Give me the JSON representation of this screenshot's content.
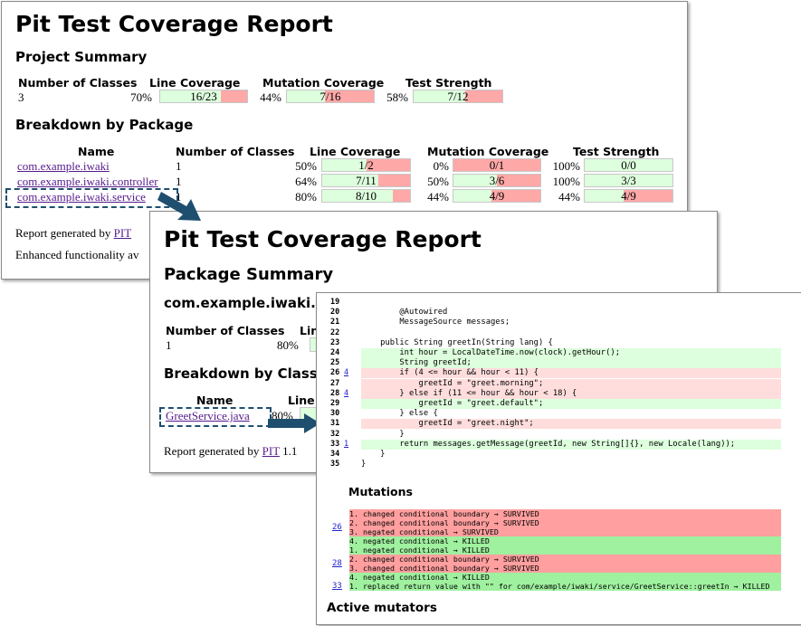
{
  "project_report": {
    "title": "Pit Test Coverage Report",
    "summary_heading": "Project Summary",
    "summary_headers": [
      "Number of Classes",
      "Line Coverage",
      "Mutation Coverage",
      "Test Strength"
    ],
    "summary": {
      "classes": "3",
      "line_pct": "70%",
      "line_val": "16/23",
      "line_frac": 0.7,
      "mut_pct": "44%",
      "mut_val": "7/16",
      "mut_frac": 0.44,
      "str_pct": "58%",
      "str_val": "7/12",
      "str_frac": 0.58
    },
    "breakdown_heading": "Breakdown by Package",
    "breakdown_headers": [
      "Name",
      "Number of Classes",
      "Line Coverage",
      "Mutation Coverage",
      "Test Strength"
    ],
    "packages": [
      {
        "name": "com.example.iwaki",
        "classes": "1",
        "line_pct": "50%",
        "line_val": "1/2",
        "line_frac": 0.5,
        "mut_pct": "0%",
        "mut_val": "0/1",
        "mut_frac": 0.0,
        "str_pct": "100%",
        "str_val": "0/0",
        "str_frac": 1.0
      },
      {
        "name": "com.example.iwaki.controller",
        "classes": "1",
        "line_pct": "64%",
        "line_val": "7/11",
        "line_frac": 0.64,
        "mut_pct": "50%",
        "mut_val": "3/6",
        "mut_frac": 0.5,
        "str_pct": "100%",
        "str_val": "3/3",
        "str_frac": 1.0
      },
      {
        "name": "com.example.iwaki.service",
        "classes": "1",
        "line_pct": "80%",
        "line_val": "8/10",
        "line_frac": 0.8,
        "mut_pct": "44%",
        "mut_val": "4/9",
        "mut_frac": 0.44,
        "str_pct": "44%",
        "str_val": "4/9",
        "str_frac": 0.44
      }
    ],
    "footer_generated": "Report generated by",
    "footer_pit": "PIT",
    "footer_enhanced": "Enhanced functionality av"
  },
  "package_report": {
    "title": "Pit Test Coverage Report",
    "summary_heading": "Package Summary",
    "package_name": "com.example.iwaki.se",
    "classes_header": "Number of Classes",
    "line_header_partial": "Lin",
    "classes": "1",
    "line_pct": "80%",
    "breakdown_heading": "Breakdown by Class",
    "name_header": "Name",
    "line_header_partial2": "Line",
    "class_name": "GreetService.java",
    "class_line_pct": "80%",
    "footer_generated": "Report generated by",
    "footer_pit": "PIT",
    "footer_version": "1.1"
  },
  "source_report": {
    "lines": [
      {
        "n": "19",
        "m": "",
        "code": "",
        "cls": ""
      },
      {
        "n": "20",
        "m": "",
        "code": "        @Autowired",
        "cls": ""
      },
      {
        "n": "21",
        "m": "",
        "code": "        MessageSource messages;",
        "cls": ""
      },
      {
        "n": "22",
        "m": "",
        "code": "",
        "cls": ""
      },
      {
        "n": "23",
        "m": "",
        "code": "    public String greetIn(String lang) {",
        "cls": ""
      },
      {
        "n": "24",
        "m": "",
        "code": "        int hour = LocalDateTime.now(clock).getHour();",
        "cls": "cov"
      },
      {
        "n": "25",
        "m": "",
        "code": "        String greetId;",
        "cls": "cov"
      },
      {
        "n": "26",
        "m": "4",
        "code": "        if (4 <= hour && hour < 11) {",
        "cls": "unc"
      },
      {
        "n": "27",
        "m": "",
        "code": "            greetId = \"greet.morning\";",
        "cls": "unc"
      },
      {
        "n": "28",
        "m": "4",
        "code": "        } else if (11 <= hour && hour < 18) {",
        "cls": "unc"
      },
      {
        "n": "29",
        "m": "",
        "code": "            greetId = \"greet.default\";",
        "cls": "cov"
      },
      {
        "n": "30",
        "m": "",
        "code": "        } else {",
        "cls": ""
      },
      {
        "n": "31",
        "m": "",
        "code": "            greetId = \"greet.night\";",
        "cls": "unc"
      },
      {
        "n": "32",
        "m": "",
        "code": "        }",
        "cls": ""
      },
      {
        "n": "33",
        "m": "1",
        "code": "        return messages.getMessage(greetId, new String[]{}, new Locale(lang));",
        "cls": "cov"
      },
      {
        "n": "34",
        "m": "",
        "code": "    }",
        "cls": ""
      },
      {
        "n": "35",
        "m": "",
        "code": "}",
        "cls": ""
      }
    ],
    "mutations_heading": "Mutations",
    "mutation_groups": [
      {
        "line": "26",
        "items": [
          {
            "text": "1. changed conditional boundary → SURVIVED",
            "status": "surv"
          },
          {
            "text": "2. changed conditional boundary → SURVIVED",
            "status": "surv"
          },
          {
            "text": "3. negated conditional → SURVIVED",
            "status": "surv"
          },
          {
            "text": "4. negated conditional → KILLED",
            "status": "kill"
          }
        ]
      },
      {
        "line": "28",
        "items": [
          {
            "text": "1. negated conditional → KILLED",
            "status": "kill"
          },
          {
            "text": "2. changed conditional boundary → SURVIVED",
            "status": "surv"
          },
          {
            "text": "3. changed conditional boundary → SURVIVED",
            "status": "surv"
          },
          {
            "text": "4. negated conditional → KILLED",
            "status": "kill"
          }
        ]
      },
      {
        "line": "33",
        "items": [
          {
            "text": "1. replaced return value with \"\" for com/example/iwaki/service/GreetService::greetIn → KILLED",
            "status": "kill"
          }
        ]
      }
    ],
    "active_mutators_heading": "Active mutators"
  },
  "colors": {
    "covered": "#ddffdd",
    "uncovered": "#ffa8a8",
    "survived": "#ff9f9f",
    "killed": "#9ff09f",
    "arrow": "#1f4f6f"
  }
}
